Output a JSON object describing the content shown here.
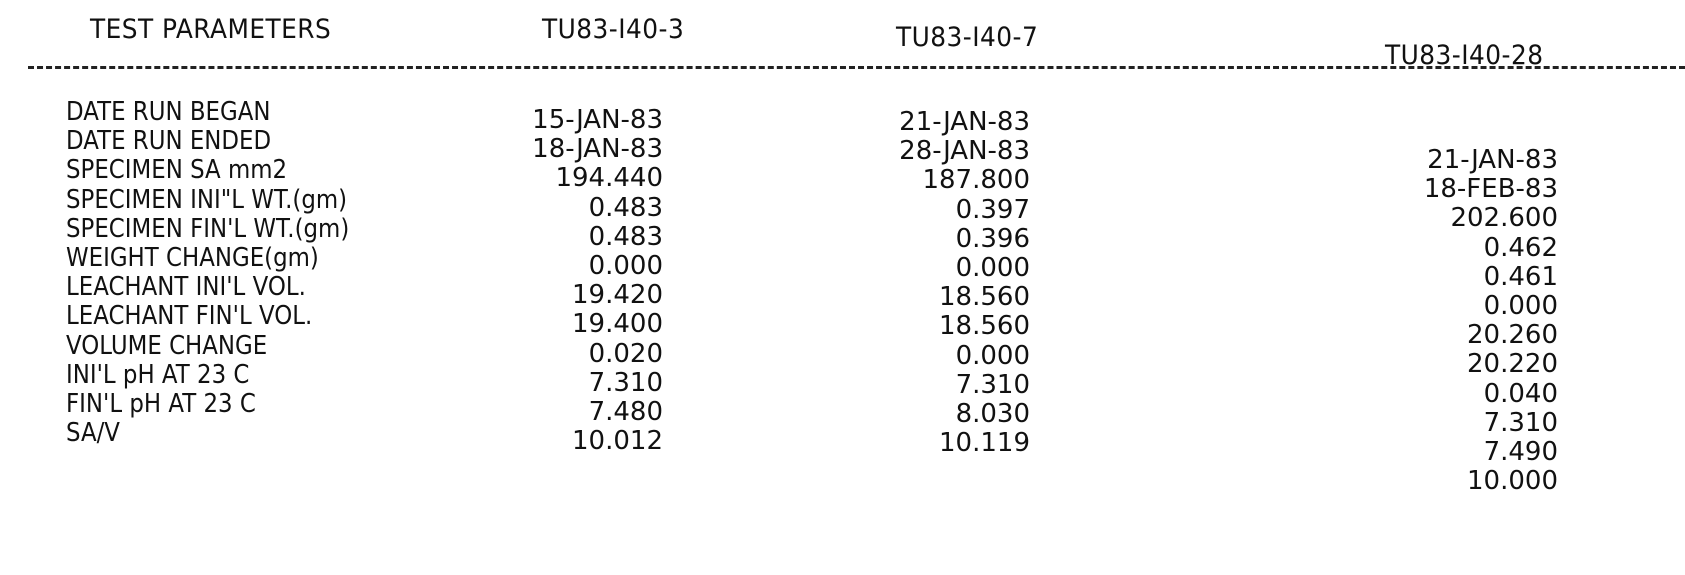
{
  "headers": {
    "parameters": "TEST PARAMETERS",
    "col1": "TU83-I40-3",
    "col2": "TU83-I40-7",
    "col3": "TU83-I40-28"
  },
  "rows": [
    {
      "label": "DATE RUN BEGAN",
      "v1": "15-JAN-83",
      "v2": "21-JAN-83",
      "v3": "21-JAN-83"
    },
    {
      "label": "DATE RUN ENDED",
      "v1": "18-JAN-83",
      "v2": "28-JAN-83",
      "v3": "18-FEB-83"
    },
    {
      "label": "SPECIMEN SA mm2",
      "v1": "194.440",
      "v2": "187.800",
      "v3": "202.600"
    },
    {
      "label": "SPECIMEN INI\"L WT.(gm)",
      "v1": "0.483",
      "v2": "0.397",
      "v3": "0.462"
    },
    {
      "label": "SPECIMEN FIN'L WT.(gm)",
      "v1": "0.483",
      "v2": "0.396",
      "v3": "0.461"
    },
    {
      "label": "WEIGHT CHANGE(gm)",
      "v1": "0.000",
      "v2": "0.000",
      "v3": "0.000"
    },
    {
      "label": "LEACHANT INI'L VOL.",
      "v1": "19.420",
      "v2": "18.560",
      "v3": "20.260"
    },
    {
      "label": "LEACHANT FIN'L VOL.",
      "v1": "19.400",
      "v2": "18.560",
      "v3": "20.220"
    },
    {
      "label": "VOLUME CHANGE",
      "v1": "0.020",
      "v2": "0.000",
      "v3": "0.040"
    },
    {
      "label": "INI'L pH AT 23 C",
      "v1": "7.310",
      "v2": "7.310",
      "v3": "7.310"
    },
    {
      "label": "FIN'L pH AT 23 C",
      "v1": "7.480",
      "v2": "8.030",
      "v3": "7.490"
    },
    {
      "label": "SA/V",
      "v1": "10.012",
      "v2": "10.119",
      "v3": "10.000"
    }
  ]
}
